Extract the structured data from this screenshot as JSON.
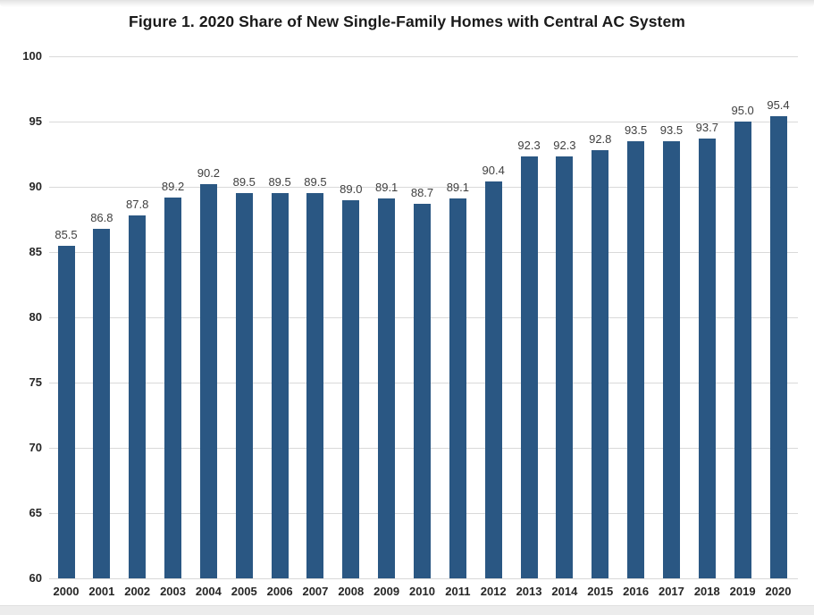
{
  "chart_data": {
    "type": "bar",
    "title": "Figure 1. 2020 Share of New Single-Family Homes with Central AC System",
    "categories": [
      "2000",
      "2001",
      "2002",
      "2003",
      "2004",
      "2005",
      "2006",
      "2007",
      "2008",
      "2009",
      "2010",
      "2011",
      "2012",
      "2013",
      "2014",
      "2015",
      "2016",
      "2017",
      "2018",
      "2019",
      "2020"
    ],
    "values": [
      85.5,
      86.8,
      87.8,
      89.2,
      90.2,
      89.5,
      89.5,
      89.5,
      89.0,
      89.1,
      88.7,
      89.1,
      90.4,
      92.3,
      92.3,
      92.8,
      93.5,
      93.5,
      93.7,
      95.0,
      95.4
    ],
    "value_labels": [
      "85.5",
      "86.8",
      "87.8",
      "89.2",
      "90.2",
      "89.5",
      "89.5",
      "89.5",
      "89.0",
      "89.1",
      "88.7",
      "89.1",
      "90.4",
      "92.3",
      "92.3",
      "92.8",
      "93.5",
      "93.5",
      "93.7",
      "95.0",
      "95.4"
    ],
    "xlabel": "",
    "ylabel": "",
    "ylim": [
      60,
      100
    ],
    "yticks": [
      100,
      95,
      90,
      85,
      80,
      75,
      70,
      65,
      60
    ],
    "grid": true,
    "legend_position": "none",
    "colors": {
      "bar_fill": "#2A5783",
      "gridline": "#D9D9D9",
      "axis_baseline": "#D9D9D9",
      "value_label_text": "#404040",
      "axis_tick_text": "#262626",
      "title_text": "#1A1A1A"
    }
  }
}
